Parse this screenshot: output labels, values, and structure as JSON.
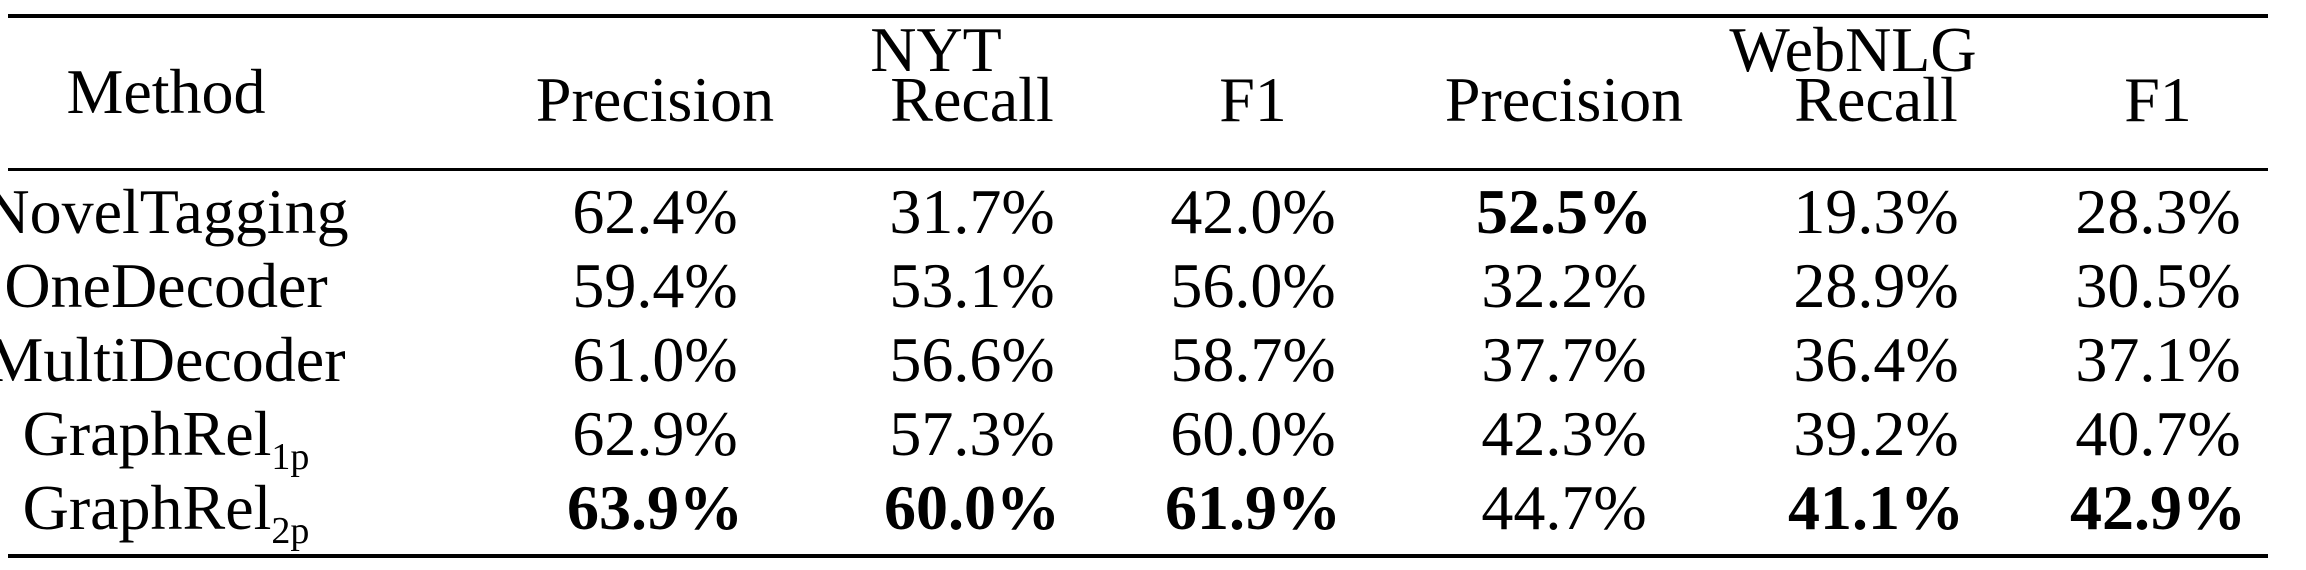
{
  "table": {
    "method_header": "Method",
    "groups": [
      "NYT",
      "WebNLG"
    ],
    "metric_headers": [
      "Precision",
      "Recall",
      "F1",
      "Precision",
      "Recall",
      "F1"
    ],
    "rows": [
      {
        "method": "NovelTagging",
        "method_sub": "",
        "cells": [
          {
            "v": "62.4",
            "bold": false
          },
          {
            "v": "31.7",
            "bold": false
          },
          {
            "v": "42.0",
            "bold": false
          },
          {
            "v": "52.5",
            "bold": true
          },
          {
            "v": "19.3",
            "bold": false
          },
          {
            "v": "28.3",
            "bold": false
          }
        ]
      },
      {
        "method": "OneDecoder",
        "method_sub": "",
        "cells": [
          {
            "v": "59.4",
            "bold": false
          },
          {
            "v": "53.1",
            "bold": false
          },
          {
            "v": "56.0",
            "bold": false
          },
          {
            "v": "32.2",
            "bold": false
          },
          {
            "v": "28.9",
            "bold": false
          },
          {
            "v": "30.5",
            "bold": false
          }
        ]
      },
      {
        "method": "MultiDecoder",
        "method_sub": "",
        "cells": [
          {
            "v": "61.0",
            "bold": false
          },
          {
            "v": "56.6",
            "bold": false
          },
          {
            "v": "58.7",
            "bold": false
          },
          {
            "v": "37.7",
            "bold": false
          },
          {
            "v": "36.4",
            "bold": false
          },
          {
            "v": "37.1",
            "bold": false
          }
        ]
      },
      {
        "method": "GraphRel",
        "method_sub": "1p",
        "cells": [
          {
            "v": "62.9",
            "bold": false
          },
          {
            "v": "57.3",
            "bold": false
          },
          {
            "v": "60.0",
            "bold": false
          },
          {
            "v": "42.3",
            "bold": false
          },
          {
            "v": "39.2",
            "bold": false
          },
          {
            "v": "40.7",
            "bold": false
          }
        ]
      },
      {
        "method": "GraphRel",
        "method_sub": "2p",
        "cells": [
          {
            "v": "63.9",
            "bold": true
          },
          {
            "v": "60.0",
            "bold": true
          },
          {
            "v": "61.9",
            "bold": true
          },
          {
            "v": "44.7",
            "bold": false
          },
          {
            "v": "41.1",
            "bold": true
          },
          {
            "v": "42.9",
            "bold": true
          }
        ]
      }
    ],
    "percent_sign": "%"
  }
}
